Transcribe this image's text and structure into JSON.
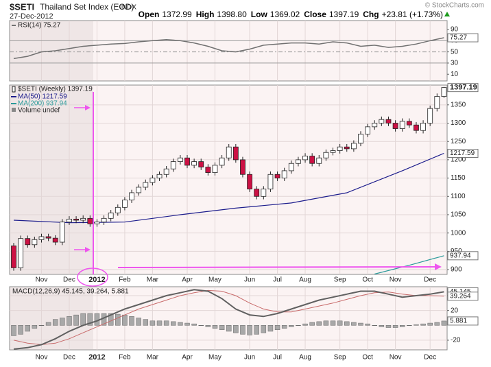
{
  "header": {
    "symbol": "$SETI",
    "name": "Thailand Set Index (EOD)",
    "exchange": "INDX",
    "date": "27-Dec-2012",
    "copyright": "© StockCharts.com",
    "quote": [
      {
        "label": "Open",
        "value": "1372.99"
      },
      {
        "label": "High",
        "value": "1398.80"
      },
      {
        "label": "Low",
        "value": "1369.02"
      },
      {
        "label": "Close",
        "value": "1397.19"
      },
      {
        "label": "Chg",
        "value": "+23.81 (+1.73%)"
      }
    ]
  },
  "chart_data": [
    {
      "type": "line",
      "label": "RSI(14) 75.27",
      "ylim": [
        -2,
        106
      ],
      "yticks": [
        10,
        30,
        50,
        70,
        90
      ],
      "levels": [
        30,
        70
      ],
      "midline": 50,
      "xlim": [
        0,
        62
      ],
      "series": [
        {
          "name": "RSI(14)",
          "color": "#707070",
          "x": [
            0,
            2,
            4,
            6,
            8,
            10,
            12,
            14,
            16,
            18,
            20,
            22,
            24,
            26,
            28,
            30,
            32,
            34,
            36,
            38,
            40,
            42,
            44,
            46,
            48,
            50,
            52,
            54,
            56,
            58,
            60,
            62
          ],
          "values": [
            38,
            42,
            50,
            52,
            56,
            60,
            62,
            64,
            65,
            68,
            70,
            72,
            70,
            66,
            60,
            52,
            50,
            55,
            62,
            64,
            66,
            66,
            64,
            68,
            66,
            60,
            62,
            58,
            60,
            64,
            70,
            75.27
          ]
        }
      ]
    },
    {
      "type": "candlestick",
      "label": "$SETI (Weekly) 1397.19",
      "volume_label": "Volume undef",
      "ylim": [
        887,
        1404
      ],
      "yticks": [
        900,
        950,
        1000,
        1050,
        1100,
        1150,
        1200,
        1250,
        1300,
        1350
      ],
      "grid": true,
      "categories": [
        null,
        null,
        null,
        null,
        "Nov",
        null,
        null,
        null,
        "Dec",
        null,
        null,
        null,
        "2012",
        null,
        null,
        null,
        "Feb",
        null,
        null,
        null,
        "Mar",
        null,
        null,
        null,
        null,
        "Apr",
        null,
        null,
        null,
        "May",
        null,
        null,
        null,
        null,
        "Jun",
        null,
        null,
        null,
        "Jul",
        null,
        null,
        null,
        "Aug",
        null,
        null,
        null,
        null,
        "Sep",
        null,
        null,
        null,
        "Oct",
        null,
        null,
        null,
        "Nov",
        null,
        null,
        null,
        null,
        "Dec",
        null,
        null
      ],
      "open": [
        965,
        905,
        985,
        968,
        982,
        990,
        986,
        975,
        1030,
        1038,
        1035,
        1040,
        1025,
        1030,
        1040,
        1055,
        1070,
        1090,
        1110,
        1125,
        1138,
        1150,
        1160,
        1175,
        1195,
        1205,
        1185,
        1195,
        1180,
        1165,
        1185,
        1205,
        1235,
        1200,
        1160,
        1120,
        1100,
        1120,
        1160,
        1150,
        1170,
        1190,
        1200,
        1210,
        1190,
        1205,
        1220,
        1225,
        1235,
        1230,
        1245,
        1270,
        1290,
        1300,
        1310,
        1300,
        1285,
        1305,
        1295,
        1280,
        1300,
        1340,
        1372.99
      ],
      "high": [
        973,
        993,
        993,
        990,
        998,
        998,
        994,
        1038,
        1046,
        1046,
        1048,
        1048,
        1038,
        1048,
        1063,
        1078,
        1098,
        1118,
        1133,
        1146,
        1158,
        1168,
        1183,
        1203,
        1213,
        1213,
        1203,
        1203,
        1188,
        1193,
        1213,
        1243,
        1243,
        1208,
        1168,
        1128,
        1128,
        1168,
        1168,
        1178,
        1198,
        1208,
        1218,
        1218,
        1213,
        1228,
        1233,
        1243,
        1243,
        1253,
        1278,
        1298,
        1308,
        1318,
        1318,
        1308,
        1313,
        1313,
        1303,
        1308,
        1348,
        1381,
        1398.8
      ],
      "low": [
        897,
        897,
        960,
        960,
        974,
        978,
        967,
        967,
        1022,
        1027,
        1027,
        1017,
        1017,
        1022,
        1032,
        1047,
        1062,
        1082,
        1102,
        1117,
        1130,
        1142,
        1152,
        1167,
        1187,
        1177,
        1177,
        1172,
        1157,
        1157,
        1177,
        1197,
        1192,
        1152,
        1112,
        1092,
        1092,
        1112,
        1142,
        1142,
        1162,
        1182,
        1192,
        1182,
        1182,
        1197,
        1212,
        1217,
        1222,
        1222,
        1237,
        1262,
        1282,
        1292,
        1292,
        1277,
        1277,
        1287,
        1272,
        1272,
        1292,
        1332,
        1369.02
      ],
      "close": [
        905,
        985,
        968,
        982,
        990,
        986,
        975,
        1030,
        1038,
        1035,
        1040,
        1025,
        1030,
        1040,
        1055,
        1070,
        1090,
        1110,
        1125,
        1138,
        1150,
        1160,
        1175,
        1195,
        1205,
        1185,
        1195,
        1180,
        1165,
        1185,
        1205,
        1235,
        1200,
        1160,
        1120,
        1100,
        1120,
        1160,
        1150,
        1170,
        1190,
        1200,
        1210,
        1190,
        1205,
        1220,
        1225,
        1235,
        1230,
        1245,
        1270,
        1290,
        1300,
        1310,
        1300,
        1285,
        1305,
        1295,
        1280,
        1300,
        1340,
        1372.99,
        1397.19
      ],
      "up_color": "#ffffff",
      "down_color": "#cc1144",
      "series": [
        {
          "name": "MA(50) 1217.59",
          "color": "#1c1c8c",
          "x": [
            0,
            8,
            16,
            24,
            32,
            40,
            48,
            56,
            62
          ],
          "values": [
            1035,
            1028,
            1030,
            1050,
            1068,
            1082,
            1110,
            1170,
            1217.59
          ]
        },
        {
          "name": "MA(200) 937.94",
          "color": "#2a9a9a",
          "x": [
            52,
            57,
            62
          ],
          "values": [
            888,
            912,
            937.94
          ]
        }
      ]
    },
    {
      "type": "macd",
      "label": "MACD(12,26,9) 45.145, 39.264, 5.881",
      "ylim": [
        -33,
        52
      ],
      "yticks": [
        -20,
        20,
        40
      ],
      "series": [
        {
          "name": "MACD",
          "color": "#606060",
          "x": [
            0,
            2,
            4,
            6,
            8,
            10,
            12,
            14,
            16,
            18,
            20,
            22,
            24,
            26,
            28,
            30,
            32,
            34,
            36,
            38,
            40,
            42,
            44,
            46,
            48,
            50,
            52,
            54,
            56,
            58,
            60,
            62
          ],
          "values": [
            -32,
            -30,
            -26,
            -18,
            -8,
            0,
            6,
            14,
            22,
            28,
            34,
            40,
            44,
            48,
            46,
            36,
            22,
            14,
            12,
            16,
            22,
            28,
            34,
            38,
            42,
            46,
            46,
            42,
            38,
            40,
            42,
            45.145
          ]
        },
        {
          "name": "Signal",
          "color": "#c86a6a",
          "x": [
            0,
            2,
            4,
            6,
            8,
            10,
            12,
            14,
            16,
            18,
            20,
            22,
            24,
            26,
            28,
            30,
            32,
            34,
            36,
            38,
            40,
            42,
            44,
            46,
            48,
            50,
            52,
            54,
            56,
            58,
            60,
            62
          ],
          "values": [
            -20,
            -24,
            -26,
            -24,
            -18,
            -10,
            -2,
            6,
            14,
            22,
            28,
            34,
            40,
            44,
            47,
            46,
            40,
            30,
            22,
            18,
            18,
            22,
            26,
            30,
            35,
            40,
            44,
            45,
            42,
            40,
            40,
            39.264
          ]
        }
      ],
      "histogram": [
        -14,
        -12,
        -8,
        -4,
        0,
        4,
        8,
        10,
        12,
        14,
        16,
        16,
        16,
        16,
        16,
        15,
        14,
        12,
        10,
        8,
        6,
        6,
        6,
        5,
        4,
        3,
        2,
        0,
        -2,
        -4,
        -6,
        -8,
        -10,
        -12,
        -13,
        -12,
        -10,
        -8,
        -6,
        -4,
        -2,
        0,
        2,
        4,
        5,
        6,
        6,
        6,
        5,
        4,
        3,
        2,
        0,
        -2,
        -3,
        -3,
        -2,
        0,
        1,
        2,
        3,
        4,
        5.881
      ],
      "histogram_color": "#a8a8a8"
    }
  ]
}
